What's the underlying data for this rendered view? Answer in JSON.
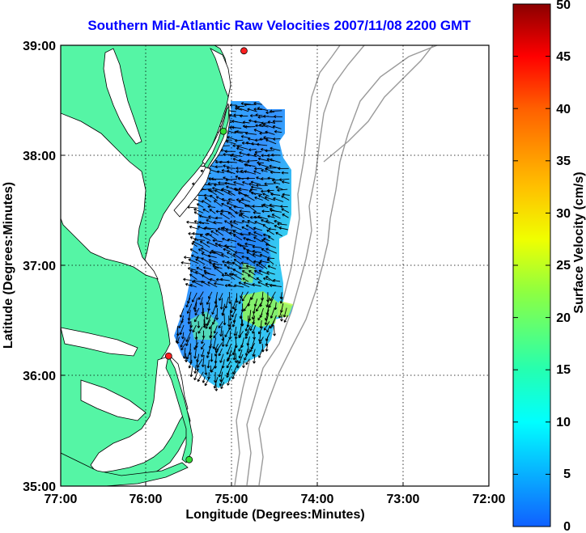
{
  "title": "Southern Mid-Atlantic Raw Velocities 2007/11/08 2200 GMT",
  "x_axis": {
    "label": "Longitude (Degrees:Minutes)",
    "ticks": [
      "77:00",
      "76:00",
      "75:00",
      "74:00",
      "73:00",
      "72:00"
    ]
  },
  "y_axis": {
    "label": "Latitude (Degrees:Minutes)",
    "ticks": [
      "39:00",
      "38:00",
      "37:00",
      "36:00",
      "35:00"
    ]
  },
  "colorbar": {
    "label": "Surface Velocity (cm/s)",
    "ticks": [
      "50",
      "45",
      "40",
      "35",
      "30",
      "25",
      "20",
      "15",
      "10",
      "5",
      "0"
    ],
    "min": 0,
    "max": 50
  },
  "colors": {
    "land": "#55f5a5",
    "title": "#0000ff",
    "bathymetry": "#9a9a9a",
    "station_red": "#ff2020",
    "station_green": "#33dd33"
  },
  "stations": [
    {
      "color": "red",
      "lon": -74.86,
      "lat": 38.95
    },
    {
      "color": "green",
      "lon": -75.1,
      "lat": 38.22
    },
    {
      "color": "red",
      "lon": -75.74,
      "lat": 36.18
    },
    {
      "color": "green",
      "lon": -75.5,
      "lat": 35.24
    }
  ]
}
